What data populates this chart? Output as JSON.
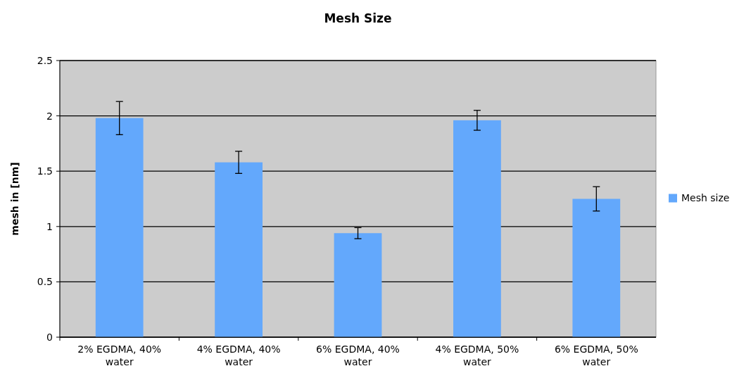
{
  "chart_data": {
    "type": "bar",
    "title": "Mesh Size",
    "ylabel": "mesh in [nm]",
    "categories": [
      "2% EGDMA, 40% water",
      "4% EGDMA, 40% water",
      "6% EGDMA, 40% water",
      "4% EGDMA, 50% water",
      "6% EGDMA, 50% water"
    ],
    "series": [
      {
        "name": "Mesh size",
        "color": "#63a8fc",
        "values": [
          1.98,
          1.58,
          0.94,
          1.96,
          1.25
        ],
        "errors": [
          0.15,
          0.1,
          0.05,
          0.09,
          0.11
        ]
      }
    ],
    "ylim": [
      0,
      2.5
    ],
    "yticks": [
      0,
      0.5,
      1,
      1.5,
      2,
      2.5
    ],
    "grid": "y",
    "legend": "right"
  }
}
